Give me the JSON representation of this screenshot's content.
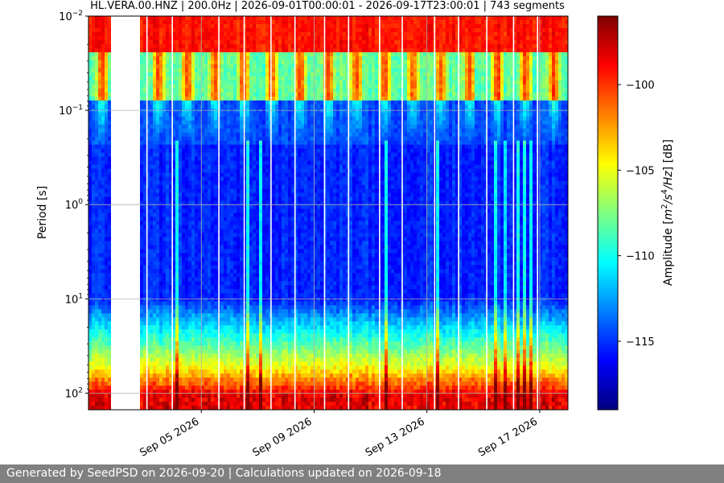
{
  "chart_data": {
    "type": "heatmap",
    "title": "HL.VERA.00.HNZ | 200.0Hz | 2026-09-01T00:00:01 - 2026-09-17T23:00:01 | 743 segments",
    "station": "HL.VERA.00.HNZ",
    "sampling_rate": "200.0Hz",
    "time_range": [
      "2026-09-01T00:00:01",
      "2026-09-17T23:00:01"
    ],
    "segments": "743 segments",
    "xlabel": "",
    "ylabel": "Period [s]",
    "y_scale": "log",
    "y_inverted": true,
    "ylim_period_s": [
      0.01,
      150
    ],
    "y_ticks": [
      {
        "value": 0.01,
        "base": "10",
        "exp": "−2"
      },
      {
        "value": 0.1,
        "base": "10",
        "exp": "−1"
      },
      {
        "value": 1,
        "base": "10",
        "exp": "0"
      },
      {
        "value": 10,
        "base": "10",
        "exp": "1"
      },
      {
        "value": 100,
        "base": "10",
        "exp": "2"
      }
    ],
    "x_ticks": [
      {
        "label": "Sep 05 2026",
        "day": 5
      },
      {
        "label": "Sep 09 2026",
        "day": 9
      },
      {
        "label": "Sep 13 2026",
        "day": 13
      },
      {
        "label": "Sep 17 2026",
        "day": 17
      }
    ],
    "xlim_days": [
      1.0,
      18.0
    ],
    "data_gap_days": [
      1.8,
      2.8
    ],
    "colormap": "jet",
    "colorbar": {
      "label_main": "Amplitude [",
      "label_math": "m",
      "label_exp1": "2",
      "label_mid": "/",
      "label_s": "s",
      "label_exp2": "4",
      "label_end": "/",
      "label_hz": "Hz",
      "label_close": "] [dB]",
      "range_db": [
        -119,
        -96
      ],
      "ticks": [
        {
          "value": -100,
          "label": "−100"
        },
        {
          "value": -105,
          "label": "−105"
        },
        {
          "value": -110,
          "label": "−110"
        },
        {
          "value": -115,
          "label": "−115"
        }
      ]
    },
    "grid": true,
    "features": {
      "high_amplitude_short_period": "0.01–0.03 s band red across all time",
      "daily_cycle_band": "0.04–0.2 s band varies daily (cultural noise)",
      "low_amplitude_mid_band": "0.3–10 s deep blue",
      "high_amplitude_long_period": ">30 s yellow to dark red"
    }
  },
  "footer": {
    "text": "Generated by SeedPSD on 2026-09-20 | Calculations updated on 2026-09-18"
  }
}
